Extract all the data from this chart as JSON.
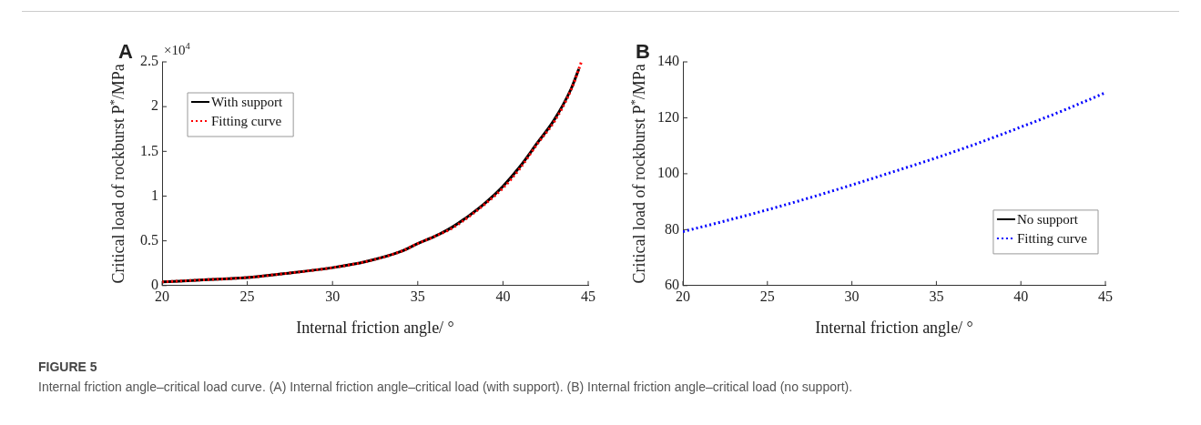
{
  "chart_data": [
    {
      "type": "line",
      "title": "A",
      "xlabel": "Internal friction angle/ °",
      "ylabel": "Critical load of rockburst P$^{*}$/MPa",
      "annotations": [
        "×10$^{4}$",
        "FIGURE 5",
        "Internal friction angle–critical load curve. (A) Internal friction angle–critical load (with support). (B) Internal friction angle–critical load (no support)."
      ],
      "series": [
        {
          "name": "With support",
          "color": "#000000",
          "line_style": "solid",
          "x": [
            20,
            22,
            25,
            27,
            30,
            32,
            34,
            35,
            36,
            37,
            38,
            39,
            40,
            41,
            42,
            43,
            44,
            44.45
          ],
          "values": [
            0.04,
            0.06,
            0.09,
            0.13,
            0.2,
            0.27,
            0.38,
            0.47,
            0.55,
            0.65,
            0.78,
            0.93,
            1.11,
            1.33,
            1.59,
            1.85,
            2.2,
            2.42
          ]
        },
        {
          "name": "Fitting curve",
          "color": "#ff0000",
          "line_style": "dotted",
          "x": [
            20,
            22,
            25,
            27,
            30,
            32,
            34,
            35,
            36,
            37,
            38,
            39,
            40,
            41,
            42,
            43,
            44,
            44.6
          ],
          "values": [
            0.04,
            0.06,
            0.09,
            0.13,
            0.2,
            0.27,
            0.38,
            0.47,
            0.55,
            0.64,
            0.77,
            0.92,
            1.09,
            1.31,
            1.58,
            1.83,
            2.19,
            2.5
          ]
        }
      ],
      "xlim": [
        20,
        45
      ],
      "xticks": [
        20,
        25,
        30,
        35,
        40,
        45
      ],
      "ylim": [
        0,
        2.5
      ],
      "yticks": [
        0,
        0.5,
        1,
        1.5,
        2,
        2.5
      ],
      "grid": false,
      "legend": "top left",
      "marker": "none"
    },
    {
      "type": "line",
      "title": "B",
      "xlabel": "Internal friction angle/ °",
      "ylabel": "Critical load of rockburst P$^{*}$/MPa",
      "series": [
        {
          "name": "No support",
          "color": "#000000",
          "line_style": "solid"
        },
        {
          "name": "Fitting curve",
          "color": "#0000ff",
          "line_style": "dotted",
          "x": [
            20,
            22.5,
            25,
            27.5,
            30,
            32.5,
            35,
            37.5,
            40,
            42.5,
            45
          ],
          "values": [
            79.3,
            83.1,
            87.1,
            91.4,
            96.0,
            100.8,
            105.7,
            111.0,
            116.7,
            122.6,
            129.0
          ]
        }
      ],
      "xlim": [
        20,
        45
      ],
      "xticks": [
        20,
        25,
        30,
        35,
        40,
        45
      ],
      "ylim": [
        60,
        140
      ],
      "yticks": [
        60,
        80,
        100,
        120,
        140
      ],
      "grid": false,
      "legend": "right",
      "marker": "none"
    }
  ]
}
